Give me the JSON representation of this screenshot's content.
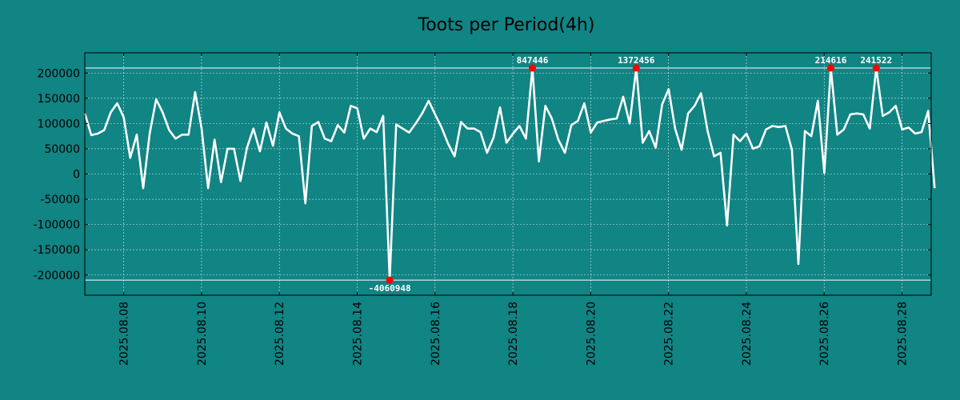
{
  "chart_data": {
    "type": "line",
    "title": "Toots per Period(4h)",
    "xlabel": "",
    "ylabel": "",
    "ylim": [
      -240000,
      240000
    ],
    "x_day_range": [
      7.0,
      28.75
    ],
    "x_tick_labels": [
      {
        "day": 8,
        "label": "2025.08.08"
      },
      {
        "day": 10,
        "label": "2025.08.10"
      },
      {
        "day": 12,
        "label": "2025.08.12"
      },
      {
        "day": 14,
        "label": "2025.08.14"
      },
      {
        "day": 16,
        "label": "2025.08.16"
      },
      {
        "day": 18,
        "label": "2025.08.18"
      },
      {
        "day": 20,
        "label": "2025.08.20"
      },
      {
        "day": 22,
        "label": "2025.08.22"
      },
      {
        "day": 24,
        "label": "2025.08.24"
      },
      {
        "day": 26,
        "label": "2025.08.26"
      },
      {
        "day": 28,
        "label": "2025.08.28"
      }
    ],
    "y_ticks": [
      200000,
      150000,
      100000,
      50000,
      0,
      -50000,
      -100000,
      -150000,
      -200000
    ],
    "y_tick_labels": [
      "200000",
      "150000",
      "100000",
      "50000",
      "0",
      "-50000",
      "-100000",
      "-150000",
      "-200000"
    ],
    "clip_lines": [
      210000,
      -210000
    ],
    "grid": true,
    "colors": {
      "background": "#118484",
      "line": "#ffffff",
      "marker": "#ff0000",
      "grid": "#ffffff",
      "axis": "#000000"
    },
    "series": [
      {
        "name": "Toots",
        "x_start_day": 7.0,
        "x_step_day": 0.1667,
        "values": [
          120000,
          77000,
          80000,
          87000,
          122000,
          140000,
          112000,
          32000,
          78000,
          -28000,
          80000,
          148000,
          122000,
          87000,
          70000,
          78000,
          78000,
          162000,
          90000,
          -28000,
          68000,
          -16000,
          50000,
          50000,
          -14000,
          52000,
          90000,
          45000,
          102000,
          56000,
          122000,
          90000,
          80000,
          75000,
          -58000,
          95000,
          103000,
          70000,
          65000,
          97000,
          82000,
          135000,
          130000,
          70000,
          90000,
          83000,
          115000,
          -210000,
          98000,
          90000,
          82000,
          100000,
          120000,
          145000,
          118000,
          92000,
          60000,
          35000,
          103000,
          90000,
          90000,
          83000,
          42000,
          72000,
          132000,
          62000,
          80000,
          95000,
          70000,
          210000,
          25000,
          135000,
          110000,
          68000,
          42000,
          97000,
          105000,
          140000,
          82000,
          102000,
          105000,
          108000,
          110000,
          153000,
          100000,
          210000,
          62000,
          85000,
          52000,
          138000,
          168000,
          90000,
          48000,
          120000,
          135000,
          160000,
          85000,
          35000,
          42000,
          -102000,
          78000,
          65000,
          80000,
          50000,
          55000,
          88000,
          95000,
          93000,
          95000,
          48000,
          -178000,
          85000,
          75000,
          145000,
          2000,
          210000,
          78000,
          88000,
          118000,
          120000,
          118000,
          90000,
          210000,
          115000,
          122000,
          135000,
          88000,
          92000,
          80000,
          83000,
          125000,
          -28000
        ]
      }
    ],
    "annotations": [
      {
        "index": 47,
        "text": "-4060948",
        "position": "below"
      },
      {
        "index": 69,
        "text": "847446",
        "position": "above"
      },
      {
        "index": 85,
        "text": "1372456",
        "position": "above"
      },
      {
        "index": 115,
        "text": "214616",
        "position": "above"
      },
      {
        "index": 122,
        "text": "241522",
        "position": "above"
      }
    ]
  }
}
